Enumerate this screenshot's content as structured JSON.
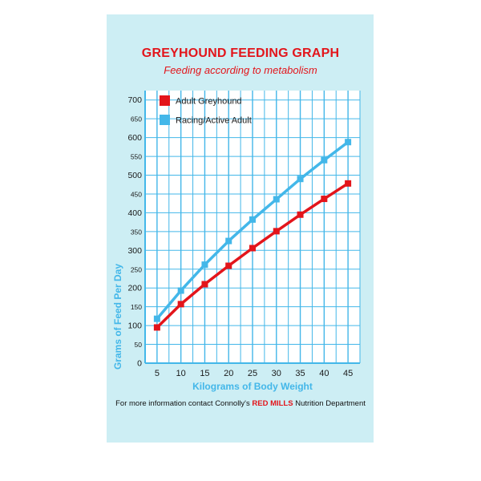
{
  "title": "GREYHOUND FEEDING GRAPH",
  "subtitle": "Feeding according to metabolism",
  "footer": {
    "prefix": "For more information contact Connolly's ",
    "brand": "RED MILLS",
    "suffix": " Nutrition Department"
  },
  "colors": {
    "red": "#e3151b",
    "blue": "#43b7e9",
    "card": "#cdeef4",
    "grid": "#43b7e9"
  },
  "chart_data": {
    "type": "line",
    "xlabel": "Kilograms of Body Weight",
    "ylabel": "Grams of Feed Per Day",
    "x": [
      5,
      10,
      15,
      20,
      25,
      30,
      35,
      40,
      45
    ],
    "xlim": [
      2.5,
      47.5
    ],
    "ylim": [
      0,
      725
    ],
    "yticks": [
      0,
      50,
      100,
      150,
      200,
      250,
      300,
      350,
      400,
      450,
      500,
      550,
      600,
      650,
      700
    ],
    "xticks": [
      5,
      10,
      15,
      20,
      25,
      30,
      35,
      40,
      45
    ],
    "grid": true,
    "legend_position": "top-left",
    "series": [
      {
        "name": "Adult Greyhound",
        "color": "#e3151b",
        "values": [
          95,
          157,
          210,
          259,
          306,
          351,
          395,
          437,
          478
        ]
      },
      {
        "name": "Racing/Active Adult",
        "color": "#43b7e9",
        "values": [
          118,
          193,
          262,
          325,
          382,
          436,
          490,
          540,
          588
        ]
      }
    ]
  }
}
